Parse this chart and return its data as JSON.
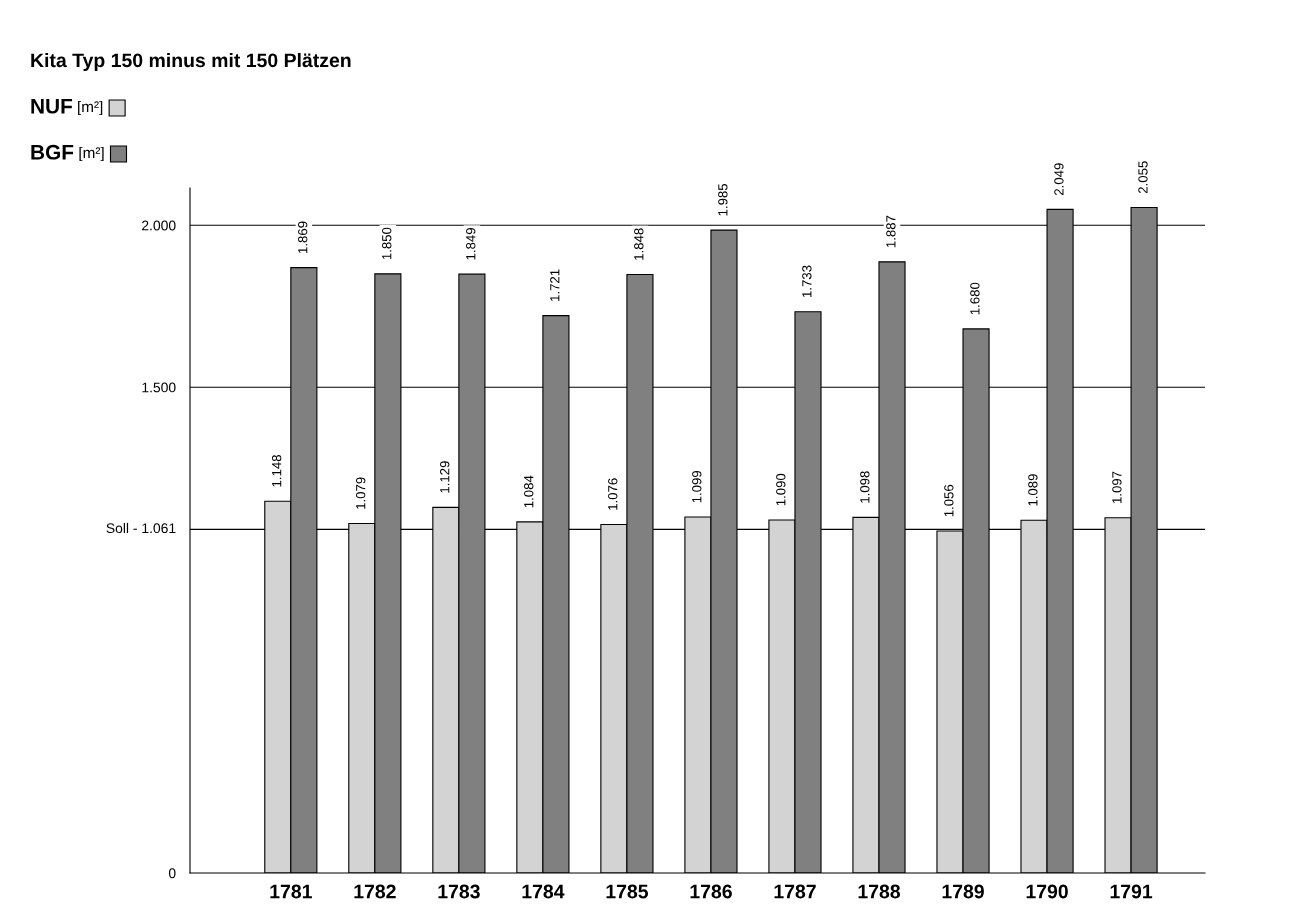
{
  "chart_data": {
    "type": "bar",
    "title": "Kita Typ 150 minus mit 150 Plätzen",
    "categories": [
      "1781",
      "1782",
      "1783",
      "1784",
      "1785",
      "1786",
      "1787",
      "1788",
      "1789",
      "1790",
      "1791"
    ],
    "series": [
      {
        "name": "NUF [m²]",
        "color": "#d3d3d3",
        "values": [
          1148,
          1079,
          1129,
          1084,
          1076,
          1099,
          1090,
          1098,
          1056,
          1089,
          1097
        ],
        "value_labels": [
          "1.148",
          "1.079",
          "1.129",
          "1.084",
          "1.076",
          "1.099",
          "1.090",
          "1.098",
          "1.056",
          "1.089",
          "1.097"
        ]
      },
      {
        "name": "BGF [m²]",
        "color": "#808080",
        "values": [
          1869,
          1850,
          1849,
          1721,
          1848,
          1985,
          1733,
          1887,
          1680,
          2049,
          2055
        ],
        "value_labels": [
          "1.869",
          "1.850",
          "1.849",
          "1.721",
          "1.848",
          "1.985",
          "1.733",
          "1.887",
          "1.680",
          "2.049",
          "2.055"
        ]
      }
    ],
    "ylim": [
      0,
      2115
    ],
    "yticks": [
      0,
      {
        "value": 1500,
        "label": "1.500"
      },
      {
        "value": 2000,
        "label": "2.000"
      }
    ],
    "ref_lines": [
      {
        "axis": "y",
        "value": 1061,
        "label": "Soll - 1.061",
        "color": "#000000"
      }
    ],
    "grid": "y",
    "legend": "top left"
  }
}
